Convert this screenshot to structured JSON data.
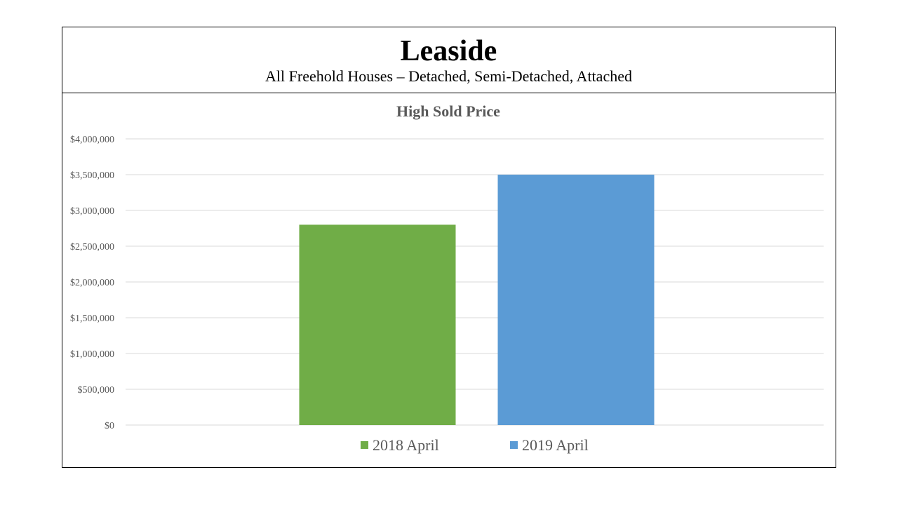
{
  "header": {
    "title": "Leaside",
    "subtitle": "All Freehold Houses – Detached, Semi-Detached, Attached"
  },
  "chart_data": {
    "type": "bar",
    "title": "High Sold Price",
    "xlabel": "",
    "ylabel": "",
    "ylim": [
      0,
      4000000
    ],
    "yticks": [
      0,
      500000,
      1000000,
      1500000,
      2000000,
      2500000,
      3000000,
      3500000,
      4000000
    ],
    "ytick_labels": [
      "$0",
      "$500,000",
      "$1,000,000",
      "$1,500,000",
      "$2,000,000",
      "$2,500,000",
      "$3,000,000",
      "$3,500,000",
      "$4,000,000"
    ],
    "grid": true,
    "legend_position": "bottom",
    "series": [
      {
        "name": "2018 April",
        "values": [
          2800000
        ],
        "color": "#70AD47"
      },
      {
        "name": "2019 April",
        "values": [
          3500000
        ],
        "color": "#5B9BD5"
      }
    ]
  }
}
